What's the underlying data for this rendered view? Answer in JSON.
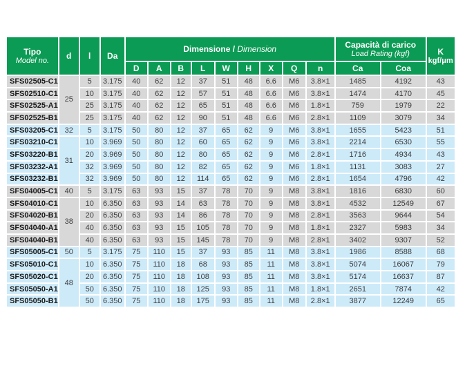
{
  "colors": {
    "header_green": "#0c9b55",
    "row_gray": "#d8d8d8",
    "row_blue": "#cdeaf9",
    "border_white": "#ffffff"
  },
  "table": {
    "header": {
      "tipo_title": "Tipo",
      "tipo_sub": "Model no.",
      "col_d": "d",
      "col_l": "l",
      "col_da": "Da",
      "dim_title_bold": "Dimensione /",
      "dim_title_italic": " Dimension",
      "dim_cols": [
        "D",
        "A",
        "B",
        "L",
        "W",
        "H",
        "X",
        "Q",
        "n"
      ],
      "load_title_bold": "Capacità di carico",
      "load_title_italic": "Load Rating (kgf)",
      "load_cols": [
        "Ca",
        "Coa"
      ],
      "k_title": "K",
      "k_sub": "kgf/μm"
    },
    "d_groups": [
      {
        "d": "25",
        "rows": 4
      },
      {
        "d": "32",
        "rows": 1
      },
      {
        "d": "31",
        "rows": 4
      },
      {
        "d": "40",
        "rows": 1
      },
      {
        "d": "38",
        "rows": 4
      },
      {
        "d": "50",
        "rows": 1
      },
      {
        "d": "48",
        "rows": 4
      }
    ],
    "rows": [
      {
        "model": "SFS02505-C1",
        "l": "5",
        "da": "3.175",
        "dim": [
          "40",
          "62",
          "12",
          "37",
          "51",
          "48",
          "6.6",
          "M6",
          "3.8×1"
        ],
        "ca": "1485",
        "coa": "4192",
        "k": "43",
        "shade": "gray"
      },
      {
        "model": "SFS02510-C1",
        "l": "10",
        "da": "3.175",
        "dim": [
          "40",
          "62",
          "12",
          "57",
          "51",
          "48",
          "6.6",
          "M6",
          "3.8×1"
        ],
        "ca": "1474",
        "coa": "4170",
        "k": "45",
        "shade": "gray"
      },
      {
        "model": "SFS02525-A1",
        "l": "25",
        "da": "3.175",
        "dim": [
          "40",
          "62",
          "12",
          "65",
          "51",
          "48",
          "6.6",
          "M6",
          "1.8×1"
        ],
        "ca": "759",
        "coa": "1979",
        "k": "22",
        "shade": "gray"
      },
      {
        "model": "SFS02525-B1",
        "l": "25",
        "da": "3.175",
        "dim": [
          "40",
          "62",
          "12",
          "90",
          "51",
          "48",
          "6.6",
          "M6",
          "2.8×1"
        ],
        "ca": "1109",
        "coa": "3079",
        "k": "34",
        "shade": "gray"
      },
      {
        "model": "SFS03205-C1",
        "l": "5",
        "da": "3.175",
        "dim": [
          "50",
          "80",
          "12",
          "37",
          "65",
          "62",
          "9",
          "M6",
          "3.8×1"
        ],
        "ca": "1655",
        "coa": "5423",
        "k": "51",
        "shade": "blue"
      },
      {
        "model": "SFS03210-C1",
        "l": "10",
        "da": "3.969",
        "dim": [
          "50",
          "80",
          "12",
          "60",
          "65",
          "62",
          "9",
          "M6",
          "3.8×1"
        ],
        "ca": "2214",
        "coa": "6530",
        "k": "55",
        "shade": "blue"
      },
      {
        "model": "SFS03220-B1",
        "l": "20",
        "da": "3.969",
        "dim": [
          "50",
          "80",
          "12",
          "80",
          "65",
          "62",
          "9",
          "M6",
          "2.8×1"
        ],
        "ca": "1716",
        "coa": "4934",
        "k": "43",
        "shade": "blue"
      },
      {
        "model": "SFS03232-A1",
        "l": "32",
        "da": "3.969",
        "dim": [
          "50",
          "80",
          "12",
          "82",
          "65",
          "62",
          "9",
          "M6",
          "1.8×1"
        ],
        "ca": "1131",
        "coa": "3083",
        "k": "27",
        "shade": "blue"
      },
      {
        "model": "SFS03232-B1",
        "l": "32",
        "da": "3.969",
        "dim": [
          "50",
          "80",
          "12",
          "114",
          "65",
          "62",
          "9",
          "M6",
          "2.8×1"
        ],
        "ca": "1654",
        "coa": "4796",
        "k": "42",
        "shade": "blue"
      },
      {
        "model": "SFS04005-C1",
        "l": "5",
        "da": "3.175",
        "dim": [
          "63",
          "93",
          "15",
          "37",
          "78",
          "70",
          "9",
          "M8",
          "3.8×1"
        ],
        "ca": "1816",
        "coa": "6830",
        "k": "60",
        "shade": "gray"
      },
      {
        "model": "SFS04010-C1",
        "l": "10",
        "da": "6.350",
        "dim": [
          "63",
          "93",
          "14",
          "63",
          "78",
          "70",
          "9",
          "M8",
          "3.8×1"
        ],
        "ca": "4532",
        "coa": "12549",
        "k": "67",
        "shade": "gray"
      },
      {
        "model": "SFS04020-B1",
        "l": "20",
        "da": "6.350",
        "dim": [
          "63",
          "93",
          "14",
          "86",
          "78",
          "70",
          "9",
          "M8",
          "2.8×1"
        ],
        "ca": "3563",
        "coa": "9644",
        "k": "54",
        "shade": "gray"
      },
      {
        "model": "SFS04040-A1",
        "l": "40",
        "da": "6.350",
        "dim": [
          "63",
          "93",
          "15",
          "105",
          "78",
          "70",
          "9",
          "M8",
          "1.8×1"
        ],
        "ca": "2327",
        "coa": "5983",
        "k": "34",
        "shade": "gray"
      },
      {
        "model": "SFS04040-B1",
        "l": "40",
        "da": "6.350",
        "dim": [
          "63",
          "93",
          "15",
          "145",
          "78",
          "70",
          "9",
          "M8",
          "2.8×1"
        ],
        "ca": "3402",
        "coa": "9307",
        "k": "52",
        "shade": "gray"
      },
      {
        "model": "SFS05005-C1",
        "l": "5",
        "da": "3.175",
        "dim": [
          "75",
          "110",
          "15",
          "37",
          "93",
          "85",
          "11",
          "M8",
          "3.8×1"
        ],
        "ca": "1986",
        "coa": "8588",
        "k": "68",
        "shade": "blue"
      },
      {
        "model": "SFS05010-C1",
        "l": "10",
        "da": "6.350",
        "dim": [
          "75",
          "110",
          "18",
          "68",
          "93",
          "85",
          "11",
          "M8",
          "3.8×1"
        ],
        "ca": "5074",
        "coa": "16067",
        "k": "79",
        "shade": "blue"
      },
      {
        "model": "SFS05020-C1",
        "l": "20",
        "da": "6.350",
        "dim": [
          "75",
          "110",
          "18",
          "108",
          "93",
          "85",
          "11",
          "M8",
          "3.8×1"
        ],
        "ca": "5174",
        "coa": "16637",
        "k": "87",
        "shade": "blue"
      },
      {
        "model": "SFS05050-A1",
        "l": "50",
        "da": "6.350",
        "dim": [
          "75",
          "110",
          "18",
          "125",
          "93",
          "85",
          "11",
          "M8",
          "1.8×1"
        ],
        "ca": "2651",
        "coa": "7874",
        "k": "42",
        "shade": "blue"
      },
      {
        "model": "SFS05050-B1",
        "l": "50",
        "da": "6.350",
        "dim": [
          "75",
          "110",
          "18",
          "175",
          "93",
          "85",
          "11",
          "M8",
          "2.8×1"
        ],
        "ca": "3877",
        "coa": "12249",
        "k": "65",
        "shade": "blue"
      }
    ]
  }
}
